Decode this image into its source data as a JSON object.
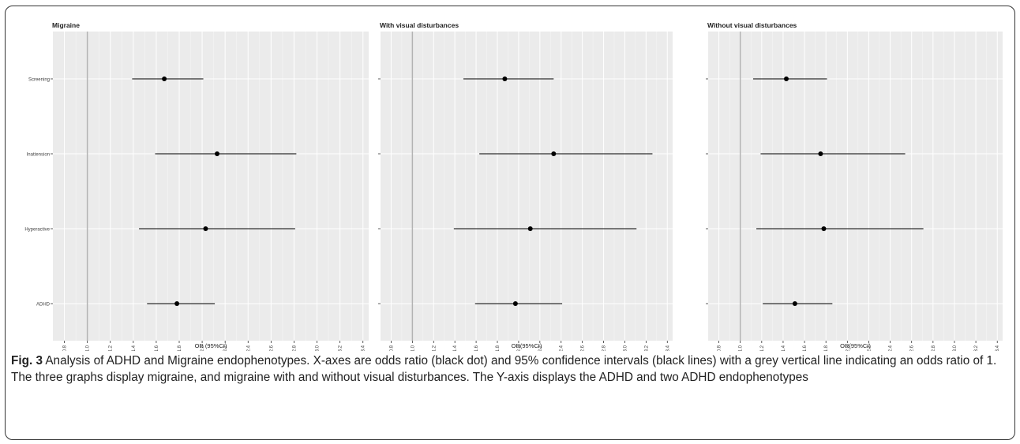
{
  "caption": {
    "label": "Fig. 3",
    "text": "Analysis of ADHD and Migraine endophenotypes. X-axes are odds ratio (black dot) and 95% confidence intervals (black lines) with a grey vertical line indicating an odds ratio of 1. The three graphs display migraine, and migraine with and without visual disturbances. The Y-axis displays the ADHD and two ADHD endophenotypes"
  },
  "colors": {
    "panel_bg": "#ebebeb",
    "grid": "#ffffff",
    "reference_line": "#b3b3b3",
    "marks": "#000000"
  },
  "chart_data": [
    {
      "type": "scatter",
      "title": "Migraine",
      "xlabel": "OR (95%CI)",
      "ylabel": "",
      "xlim": [
        0.7,
        3.45
      ],
      "x_ticks": [
        "0.8",
        "1.0",
        "1.2",
        "1.4",
        "1.6",
        "1.8",
        "2.0",
        "2.2",
        "2.4",
        "2.6",
        "2.8",
        "3.0",
        "3.2",
        "3.4"
      ],
      "categories": [
        "Screening",
        "Inattension",
        "Hyperactive",
        "ADHD"
      ],
      "show_category_labels": true,
      "reference_line": 1.0,
      "grid": true,
      "or": [
        1.67,
        2.13,
        2.03,
        1.78
      ],
      "ci_low": [
        1.39,
        1.59,
        1.45,
        1.52
      ],
      "ci_high": [
        2.01,
        2.82,
        2.81,
        2.11
      ]
    },
    {
      "type": "scatter",
      "title": "With visual disturbances",
      "xlabel": "OR(95%CI)",
      "ylabel": "",
      "xlim": [
        0.7,
        3.45
      ],
      "x_ticks": [
        "0.8",
        "1.0",
        "1.2",
        "1.4",
        "1.6",
        "1.8",
        "2.0",
        "2.2",
        "2.4",
        "2.6",
        "2.8",
        "3.0",
        "3.2",
        "3.4"
      ],
      "categories": [
        "Screening",
        "Inattension",
        "Hyperactive",
        "ADHD"
      ],
      "show_category_labels": false,
      "reference_line": 1.0,
      "grid": true,
      "or": [
        1.87,
        2.33,
        2.11,
        1.97
      ],
      "ci_low": [
        1.48,
        1.63,
        1.39,
        1.59
      ],
      "ci_high": [
        2.33,
        3.26,
        3.11,
        2.41
      ]
    },
    {
      "type": "scatter",
      "title": "Without visual disturbances",
      "xlabel": "OR(95%CI)",
      "ylabel": "",
      "xlim": [
        0.7,
        3.45
      ],
      "x_ticks": [
        "0.8",
        "1.0",
        "1.2",
        "1.4",
        "1.6",
        "1.8",
        "2.0",
        "2.2",
        "2.4",
        "2.6",
        "2.8",
        "3.0",
        "3.2",
        "3.4"
      ],
      "categories": [
        "Screening",
        "Inattension",
        "Hyperactive",
        "ADHD"
      ],
      "show_category_labels": false,
      "reference_line": 1.0,
      "grid": true,
      "or": [
        1.43,
        1.75,
        1.78,
        1.51
      ],
      "ci_low": [
        1.12,
        1.19,
        1.15,
        1.21
      ],
      "ci_high": [
        1.81,
        2.54,
        2.71,
        1.86
      ]
    }
  ]
}
